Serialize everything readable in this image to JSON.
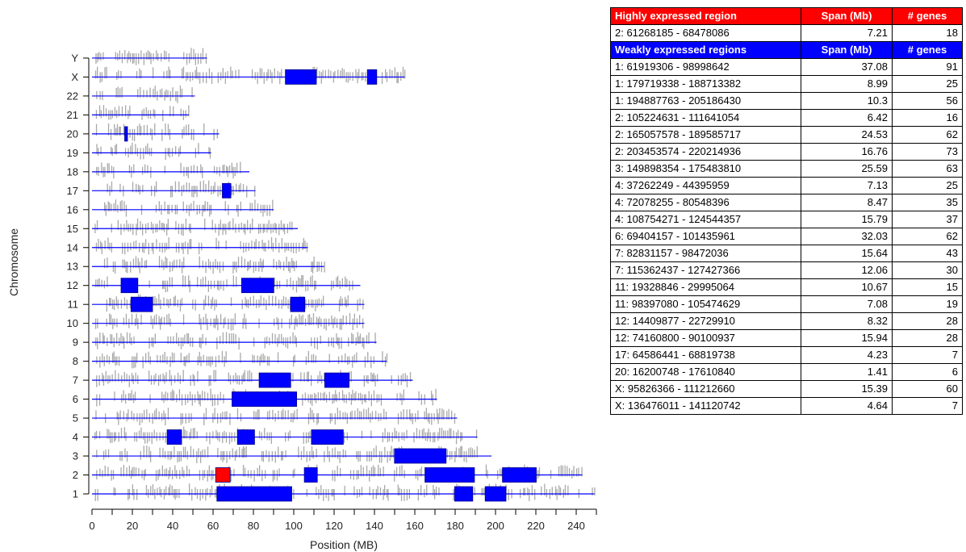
{
  "chart_data": [
    {
      "type": "ideogram",
      "xlabel": "Position (MB)",
      "ylabel": "Chromosome",
      "xlim": [
        0,
        250
      ],
      "xticks": [
        0,
        20,
        40,
        60,
        80,
        100,
        120,
        140,
        160,
        180,
        200,
        220,
        240
      ],
      "chromosomes": [
        "1",
        "2",
        "3",
        "4",
        "5",
        "6",
        "7",
        "8",
        "9",
        "10",
        "11",
        "12",
        "13",
        "14",
        "15",
        "16",
        "17",
        "18",
        "19",
        "20",
        "21",
        "22",
        "X",
        "Y"
      ],
      "chromosome_length_mb": [
        249,
        243,
        198,
        191,
        181,
        171,
        159,
        146,
        141,
        135,
        135,
        133,
        115,
        107,
        102,
        90,
        81,
        78,
        59,
        63,
        48,
        51,
        155,
        57
      ],
      "highly_expressed_regions": [
        {
          "chrom": "2",
          "start_mb": 61.27,
          "end_mb": 68.48
        }
      ],
      "weakly_expressed_regions": [
        {
          "chrom": "1",
          "start_mb": 61.92,
          "end_mb": 99.0
        },
        {
          "chrom": "1",
          "start_mb": 179.72,
          "end_mb": 188.71
        },
        {
          "chrom": "1",
          "start_mb": 194.89,
          "end_mb": 205.19
        },
        {
          "chrom": "2",
          "start_mb": 105.22,
          "end_mb": 111.64
        },
        {
          "chrom": "2",
          "start_mb": 165.06,
          "end_mb": 189.59
        },
        {
          "chrom": "2",
          "start_mb": 203.45,
          "end_mb": 220.21
        },
        {
          "chrom": "3",
          "start_mb": 149.9,
          "end_mb": 175.48
        },
        {
          "chrom": "4",
          "start_mb": 37.26,
          "end_mb": 44.4
        },
        {
          "chrom": "4",
          "start_mb": 72.08,
          "end_mb": 80.55
        },
        {
          "chrom": "4",
          "start_mb": 108.75,
          "end_mb": 124.54
        },
        {
          "chrom": "6",
          "start_mb": 69.4,
          "end_mb": 101.44
        },
        {
          "chrom": "7",
          "start_mb": 82.83,
          "end_mb": 98.47
        },
        {
          "chrom": "7",
          "start_mb": 115.36,
          "end_mb": 127.43
        },
        {
          "chrom": "11",
          "start_mb": 19.33,
          "end_mb": 30.0
        },
        {
          "chrom": "11",
          "start_mb": 98.4,
          "end_mb": 105.47
        },
        {
          "chrom": "12",
          "start_mb": 14.41,
          "end_mb": 22.73
        },
        {
          "chrom": "12",
          "start_mb": 74.16,
          "end_mb": 90.1
        },
        {
          "chrom": "17",
          "start_mb": 64.59,
          "end_mb": 68.82
        },
        {
          "chrom": "20",
          "start_mb": 16.2,
          "end_mb": 17.61
        },
        {
          "chrom": "X",
          "start_mb": 95.83,
          "end_mb": 111.21
        },
        {
          "chrom": "X",
          "start_mb": 136.48,
          "end_mb": 141.12
        }
      ],
      "colors": {
        "gene_ticks": "#a9a9a9",
        "chrom_line": "#0000ff",
        "weak": "#0000ff",
        "high": "#ff0000",
        "axis": "#000000"
      }
    },
    {
      "type": "table",
      "highly": {
        "header": [
          "Highly expressed region",
          "Span (Mb)",
          "# genes"
        ],
        "rows": [
          [
            "2: 61268185 - 68478086",
            "7.21",
            "18"
          ]
        ]
      },
      "weakly": {
        "header": [
          "Weakly expressed regions",
          "Span (Mb)",
          "# genes"
        ],
        "rows": [
          [
            "1: 61919306 - 98998642",
            "37.08",
            "91"
          ],
          [
            "1: 179719338 - 188713382",
            "8.99",
            "25"
          ],
          [
            "1: 194887763 - 205186430",
            "10.3",
            "56"
          ],
          [
            "2: 105224631 - 111641054",
            "6.42",
            "16"
          ],
          [
            "2: 165057578 - 189585717",
            "24.53",
            "62"
          ],
          [
            "2: 203453574 - 220214936",
            "16.76",
            "73"
          ],
          [
            "3: 149898354 - 175483810",
            "25.59",
            "63"
          ],
          [
            "4: 37262249 - 44395959",
            "7.13",
            "25"
          ],
          [
            "4: 72078255 - 80548396",
            "8.47",
            "35"
          ],
          [
            "4: 108754271 - 124544357",
            "15.79",
            "37"
          ],
          [
            "6: 69404157 - 101435961",
            "32.03",
            "62"
          ],
          [
            "7: 82831157 - 98472036",
            "15.64",
            "43"
          ],
          [
            "7: 115362437 - 127427366",
            "12.06",
            "30"
          ],
          [
            "11: 19328846 - 29995064",
            "10.67",
            "15"
          ],
          [
            "11: 98397080 - 105474629",
            "7.08",
            "19"
          ],
          [
            "12: 14409877 - 22729910",
            "8.32",
            "28"
          ],
          [
            "12: 74160800 - 90100937",
            "15.94",
            "28"
          ],
          [
            "17: 64586441 - 68819738",
            "4.23",
            "7"
          ],
          [
            "20: 16200748 - 17610840",
            "1.41",
            "6"
          ],
          [
            "X: 95826366 - 111212660",
            "15.39",
            "60"
          ],
          [
            "X: 136476011 - 141120742",
            "4.64",
            "7"
          ]
        ]
      }
    }
  ]
}
